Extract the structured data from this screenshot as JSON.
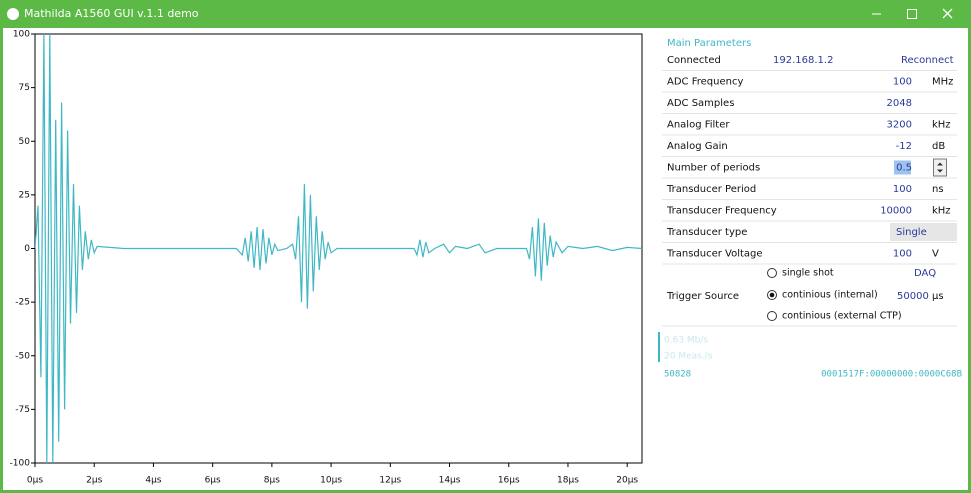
{
  "window": {
    "title": "Mathilda A1560 GUI v.1.1 demo"
  },
  "chart_data": {
    "type": "line",
    "color": "#3fb8c4",
    "x": [
      0,
      0.1,
      0.2,
      0.3,
      0.4,
      0.5,
      0.6,
      0.7,
      0.8,
      0.9,
      1.0,
      1.1,
      1.2,
      1.3,
      1.4,
      1.5,
      1.6,
      1.7,
      1.8,
      1.9,
      2.0,
      2.1,
      3,
      5,
      6.8,
      7.0,
      7.1,
      7.2,
      7.3,
      7.4,
      7.5,
      7.6,
      7.7,
      7.8,
      7.9,
      8.0,
      8.1,
      8.2,
      8.5,
      8.7,
      8.8,
      8.9,
      9.0,
      9.1,
      9.2,
      9.3,
      9.4,
      9.5,
      9.6,
      9.7,
      9.8,
      9.9,
      10.0,
      10.2,
      12.8,
      12.9,
      13.0,
      13.1,
      13.2,
      13.3,
      13.5,
      13.8,
      14.0,
      14.2,
      14.6,
      15,
      15.2,
      15.6,
      16.6,
      16.7,
      16.8,
      16.9,
      17.0,
      17.1,
      17.2,
      17.3,
      17.4,
      17.5,
      17.6,
      17.8,
      18,
      18.5,
      19,
      19.5,
      20,
      20.5
    ],
    "values": [
      0,
      20,
      -60,
      100,
      -100,
      100,
      -100,
      60,
      -90,
      68,
      -75,
      55,
      -35,
      30,
      -30,
      20,
      -10,
      8,
      -5,
      4,
      -2,
      1,
      0,
      0,
      0,
      -3,
      5,
      -6,
      8,
      -9,
      10,
      -10,
      9,
      -7,
      5,
      -3,
      2,
      -1,
      0,
      2,
      -5,
      15,
      -25,
      30,
      -28,
      25,
      -20,
      15,
      -10,
      8,
      -5,
      3,
      -2,
      0,
      0,
      -3,
      4,
      -4,
      3,
      -2,
      0,
      2,
      -2,
      1,
      0,
      2,
      -2,
      0,
      0,
      -5,
      10,
      -13,
      14,
      -15,
      12,
      -8,
      6,
      -4,
      3,
      -2,
      1,
      0,
      1,
      -1,
      0.5,
      0
    ],
    "xlim": [
      0,
      20.5
    ],
    "ylim": [
      -100,
      100
    ],
    "yticks": [
      -100,
      -75,
      -50,
      -25,
      0,
      25,
      50,
      75,
      100
    ],
    "xticks": [
      {
        "value": 0,
        "label": "0µs"
      },
      {
        "value": 2,
        "label": "2µs"
      },
      {
        "value": 4,
        "label": "4µs"
      },
      {
        "value": 6,
        "label": "6µs"
      },
      {
        "value": 8,
        "label": "8µs"
      },
      {
        "value": 10,
        "label": "10µs"
      },
      {
        "value": 12,
        "label": "12µs"
      },
      {
        "value": 14,
        "label": "14µs"
      },
      {
        "value": 16,
        "label": "16µs"
      },
      {
        "value": 18,
        "label": "18µs"
      },
      {
        "value": 20,
        "label": "20µs"
      }
    ]
  },
  "panel": {
    "title": "Main Parameters",
    "rows": [
      {
        "label": "Connected",
        "value": "192.168.1.2",
        "action": "Reconnect"
      },
      {
        "label": "ADC Frequency",
        "value": "100",
        "unit": "MHz"
      },
      {
        "label": "ADC Samples",
        "value": "2048"
      },
      {
        "label": "Analog Filter",
        "value": "3200",
        "unit": "kHz"
      },
      {
        "label": "Analog Gain",
        "value": "-12",
        "unit": "dB"
      },
      {
        "label": "Number of periods",
        "value": "0.5"
      },
      {
        "label": "Transducer Period",
        "value": "100",
        "unit": "ns"
      },
      {
        "label": "Transducer Frequency",
        "value": "10000",
        "unit": "kHz"
      },
      {
        "label": "Transducer type",
        "value": "Single"
      },
      {
        "label": "Transducer Voltage",
        "value": "100",
        "unit": "V"
      }
    ],
    "trigger": {
      "label": "Trigger Source",
      "options": [
        "single shot",
        "continious (internal)",
        "continious (external CTP)"
      ],
      "selected": 1,
      "action": "DAQ",
      "value": "50000",
      "unit": "µs"
    }
  },
  "status": {
    "rate": "0.63 Mb/s",
    "meas": "20 Meas./s",
    "count": "50828",
    "code": "0001517F:00000000:0000C68B"
  }
}
